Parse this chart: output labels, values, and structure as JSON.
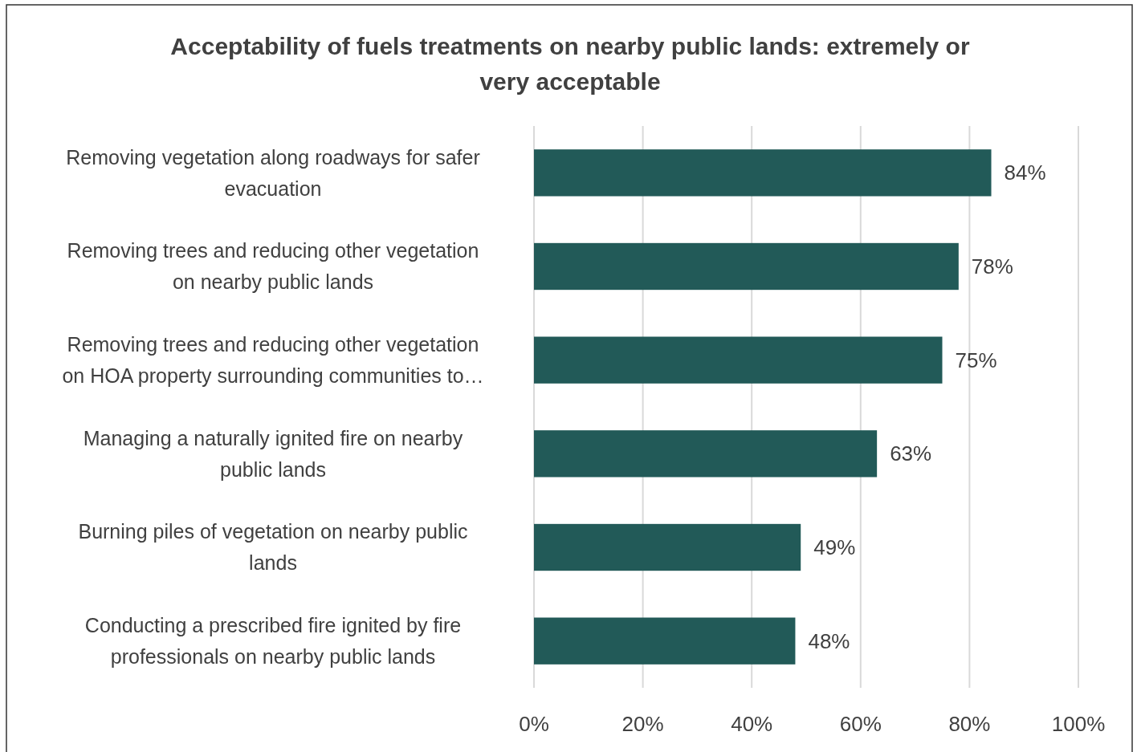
{
  "chart_data": {
    "type": "bar",
    "orientation": "horizontal",
    "title": "Acceptability of fuels treatments on nearby public lands: extremely or very acceptable",
    "categories": [
      "Removing vegetation along roadways for safer evacuation",
      "Removing trees and reducing other vegetation on nearby public lands",
      "Removing trees and reducing other vegetation on HOA property surrounding communities to…",
      "Managing a naturally ignited fire on nearby public lands",
      "Burning piles of vegetation on nearby public lands",
      "Conducting a prescribed fire ignited by fire professionals on nearby public lands"
    ],
    "values": [
      84,
      78,
      75,
      63,
      49,
      48
    ],
    "value_labels": [
      "84%",
      "78%",
      "75%",
      "63%",
      "49%",
      "48%"
    ],
    "color": "#225a58",
    "xlim": [
      0,
      100
    ],
    "xticks": [
      {
        "value": 0,
        "label": "0%"
      },
      {
        "value": 20,
        "label": "20%"
      },
      {
        "value": 40,
        "label": "40%"
      },
      {
        "value": 60,
        "label": "60%"
      },
      {
        "value": 80,
        "label": "80%"
      },
      {
        "value": 100,
        "label": "100%"
      }
    ],
    "grid": "x"
  }
}
